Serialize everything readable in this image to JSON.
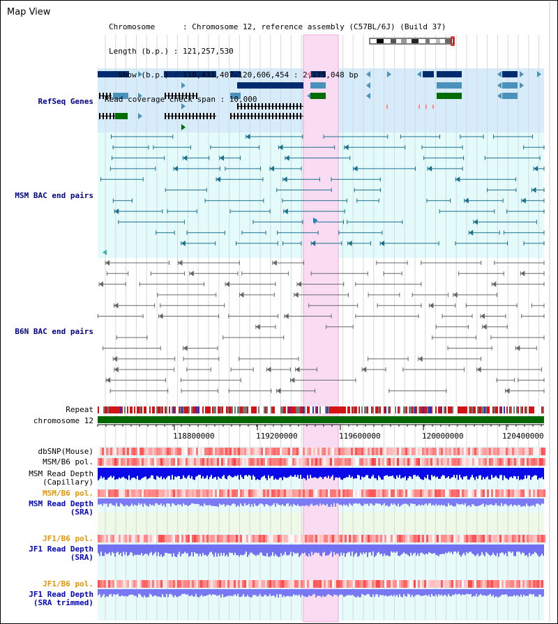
{
  "header": {
    "title": "Map View",
    "info_lines": [
      "Chromosome      : Chromosome 12, reference assembly (C57BL/6J) (Build 37)",
      "Length (b.p.) : 121,257,530",
      "  Show (b.p.) : 118,431,407-120,606,454 : 2,175,048 bp",
      "Read coverage check span : 10,000"
    ]
  },
  "tracks": {
    "refseq": "RefSeq Genes",
    "msm_bac": "MSM BAC end pairs",
    "b6n_bac": "B6N BAC end pairs",
    "repeat": "Repeat",
    "chromosome": "chromosome 12",
    "dbsnp": "dbSNP(Mouse)",
    "msm_b6_pol": "MSM/B6 pol.",
    "msm_read_depth_cap_1": "MSM Read Depth",
    "msm_read_depth_cap_2": "(Capillary)",
    "msm_b6_pol_2": "MSM/B6 pol.",
    "msm_read_depth_sra_1": "MSM Read Depth",
    "msm_read_depth_sra_2": "(SRA)",
    "jf1_b6_pol": "JF1/B6 pol.",
    "jf1_read_depth_1": "JF1 Read Depth",
    "jf1_read_depth_2": "(SRA)",
    "jf1_b6_pol_2": "JF1/B6 pol.",
    "jf1_read_depth_trim_1": "JF1 Read Depth",
    "jf1_read_depth_trim_2": "(SRA trimmed)"
  },
  "axis": {
    "ticks": [
      "118800000",
      "119200000",
      "119600000",
      "120000000",
      "120400000"
    ]
  },
  "colors": {
    "highlight": "#fadcf2",
    "refseq_bg": "#d6ecfa",
    "msm_bg": "#e4fbfb",
    "gene_dark": "#002b6e",
    "gene_mid": "#4a92bb",
    "gene_green": "#006b00",
    "bac_line": "#1a6e8e",
    "b6n_line": "#666666",
    "chrom_bar": "#006600"
  }
}
